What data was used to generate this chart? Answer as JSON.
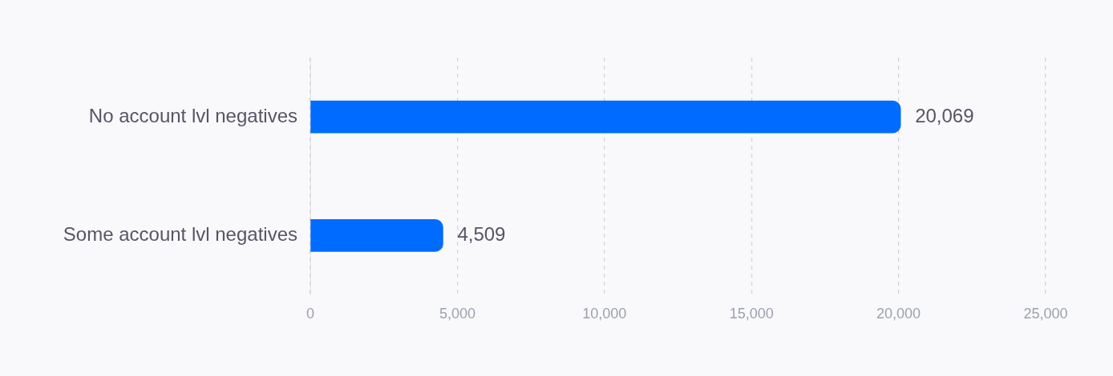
{
  "chart_data": {
    "type": "bar",
    "orientation": "horizontal",
    "categories": [
      "No account lvl negatives",
      "Some account lvl negatives"
    ],
    "values": [
      20069,
      4509
    ],
    "color": "#006cff",
    "xlim": [
      0,
      25000
    ],
    "xticks": [
      0,
      {
        "value": 5000,
        "label": "5,000"
      },
      {
        "value": 10000,
        "label": "10,000"
      },
      {
        "value": 15000,
        "label": "15,000"
      },
      {
        "value": 20000,
        "label": "20,000"
      },
      {
        "value": 25000,
        "label": "25,000"
      }
    ],
    "value_labels": [
      "20,069",
      "4,509"
    ],
    "grid": "x"
  }
}
